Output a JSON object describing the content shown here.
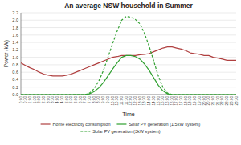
{
  "chart_data": {
    "type": "line",
    "title": "An average NSW household in Summer",
    "x_label": "Time",
    "y_label": "Power (kW)",
    "categories": [
      "0:00",
      "0:30",
      "1:00",
      "1:30",
      "2:00",
      "2:30",
      "3:00",
      "3:30",
      "4:00",
      "4:30",
      "5:00",
      "5:30",
      "6:00",
      "6:30",
      "7:00",
      "7:30",
      "8:00",
      "8:30",
      "9:00",
      "9:30",
      "10:00",
      "10:30",
      "11:00",
      "11:30",
      "12:00",
      "12:30",
      "13:00",
      "13:30",
      "14:00",
      "14:30",
      "15:00",
      "15:30",
      "16:00",
      "16:30",
      "17:00",
      "17:30",
      "18:00",
      "18:30",
      "19:00",
      "19:30",
      "20:00",
      "20:30",
      "21:00",
      "21:30",
      "22:00",
      "22:30",
      "23:00",
      "23:30"
    ],
    "series": [
      {
        "name": "Home electricity consumption",
        "color": "#b04040",
        "line_style": "solid",
        "values": [
          0.85,
          0.78,
          0.72,
          0.67,
          0.6,
          0.55,
          0.52,
          0.5,
          0.5,
          0.5,
          0.52,
          0.55,
          0.6,
          0.65,
          0.7,
          0.75,
          0.8,
          0.85,
          0.9,
          0.95,
          1.0,
          1.02,
          1.05,
          1.05,
          1.05,
          1.05,
          1.07,
          1.08,
          1.1,
          1.15,
          1.2,
          1.25,
          1.28,
          1.28,
          1.25,
          1.22,
          1.18,
          1.12,
          1.1,
          1.08,
          1.05,
          1.05,
          1.0,
          0.98,
          0.95,
          0.92,
          0.92,
          0.92
        ]
      },
      {
        "name": "Solar PV generation (1.5kW system)",
        "color": "#30a030",
        "line_style": "solid",
        "values": [
          0.0,
          0.0,
          0.0,
          0.0,
          0.0,
          0.0,
          0.0,
          0.0,
          0.0,
          0.0,
          0.0,
          0.0,
          0.0,
          0.0,
          0.0,
          0.02,
          0.08,
          0.18,
          0.32,
          0.5,
          0.68,
          0.85,
          1.0,
          1.05,
          1.05,
          1.02,
          0.95,
          0.82,
          0.65,
          0.45,
          0.25,
          0.1,
          0.02,
          0.0,
          0.0,
          0.0,
          0.0,
          0.0,
          0.0,
          0.0,
          0.0,
          0.0,
          0.0,
          0.0,
          0.0,
          0.0,
          0.0,
          0.0
        ]
      },
      {
        "name": "Solar PV generation (3kW system)",
        "color": "#30a030",
        "line_style": "dashed",
        "values": [
          0.0,
          0.0,
          0.0,
          0.0,
          0.0,
          0.0,
          0.0,
          0.0,
          0.0,
          0.0,
          0.0,
          0.0,
          0.0,
          0.0,
          0.0,
          0.04,
          0.16,
          0.36,
          0.64,
          1.0,
          1.36,
          1.7,
          2.0,
          2.1,
          2.08,
          2.02,
          1.9,
          1.64,
          1.3,
          0.9,
          0.5,
          0.2,
          0.04,
          0.0,
          0.0,
          0.0,
          0.0,
          0.0,
          0.0,
          0.0,
          0.0,
          0.0,
          0.0,
          0.0,
          0.0,
          0.0,
          0.0,
          0.0
        ]
      }
    ],
    "ylim": [
      0.0,
      2.2
    ],
    "yticks": [
      {
        "value": 0.0,
        "label": "0.0"
      },
      0.2,
      0.4,
      0.6,
      0.8,
      {
        "value": 1.0,
        "label": "1.0"
      },
      1.2,
      1.4,
      1.6,
      1.8,
      {
        "value": 2.0,
        "label": "2.0"
      },
      2.2
    ],
    "grid": true,
    "legend": "bottom"
  }
}
